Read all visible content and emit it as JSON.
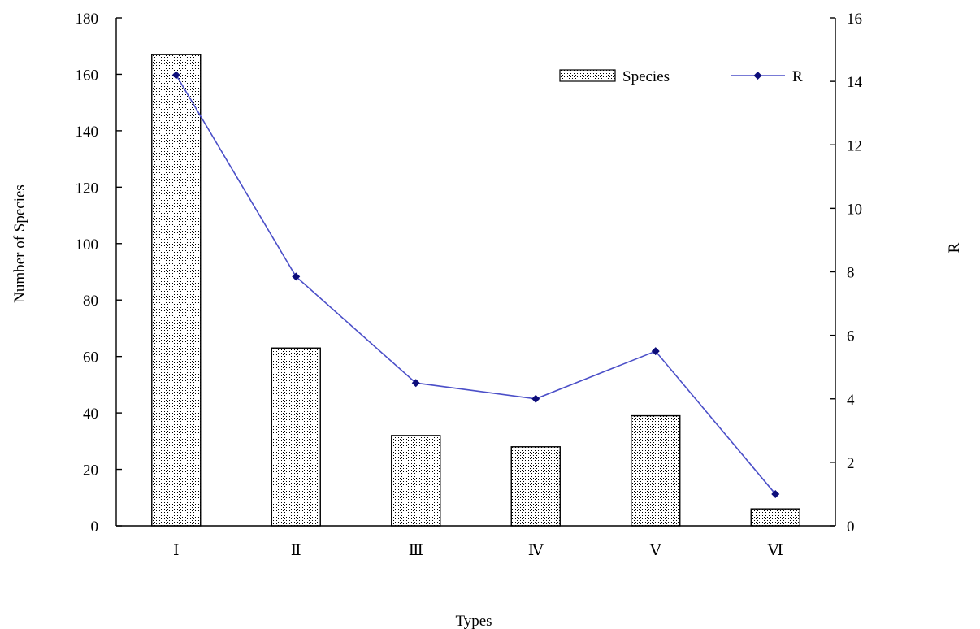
{
  "chart_data": {
    "type": "bar",
    "title": "",
    "xlabel": "Types",
    "ylabel": "Number of Species",
    "y2label": "R",
    "categories": [
      "Ⅰ",
      "Ⅱ",
      "Ⅲ",
      "Ⅳ",
      "Ⅴ",
      "Ⅵ"
    ],
    "ylim": [
      0,
      180
    ],
    "yticks": [
      0,
      20,
      40,
      60,
      80,
      100,
      120,
      140,
      160,
      180
    ],
    "y2lim": [
      0,
      16
    ],
    "y2ticks": [
      0,
      2,
      4,
      6,
      8,
      10,
      12,
      14,
      16
    ],
    "grid": false,
    "legend_position": "top-right",
    "series": [
      {
        "name": "Species",
        "type": "bar",
        "axis": "left",
        "pattern": "dotted",
        "values": [
          167,
          63,
          32,
          28,
          39,
          6
        ]
      },
      {
        "name": "R",
        "type": "line",
        "axis": "right",
        "color": "#4b4fc8",
        "marker_color": "#0d0d7a",
        "marker": "diamond",
        "values": [
          14.2,
          7.85,
          4.5,
          4.0,
          5.5,
          1.0
        ]
      }
    ]
  }
}
